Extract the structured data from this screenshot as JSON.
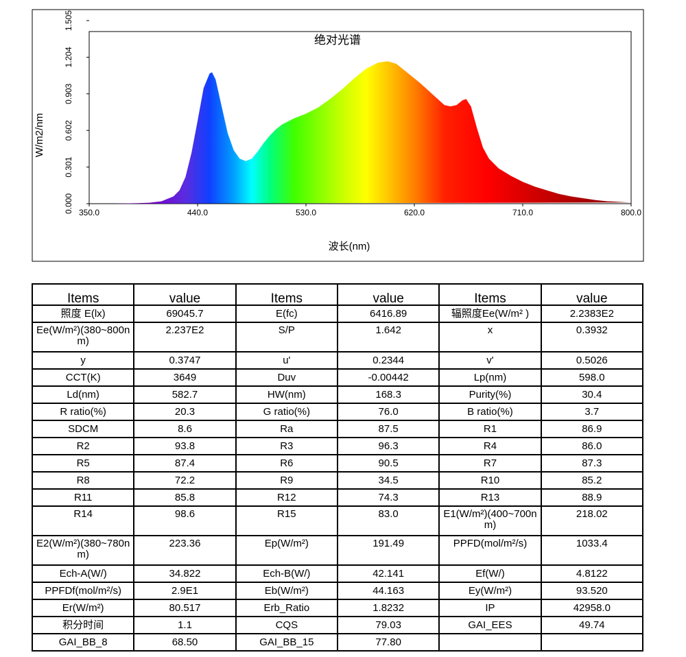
{
  "chart_data": {
    "type": "area",
    "title": "绝对光谱",
    "x_label": "波长(nm)",
    "y_label": "W/m2/nm",
    "xlim": [
      350,
      800
    ],
    "ylim": [
      0,
      1.505
    ],
    "xticks": [
      {
        "value": 350,
        "label": "350.0"
      },
      {
        "value": 440,
        "label": "440.0"
      },
      {
        "value": 530,
        "label": "530.0"
      },
      {
        "value": 620,
        "label": "620.0"
      },
      {
        "value": 710,
        "label": "710.0"
      },
      {
        "value": 800,
        "label": "800.0"
      }
    ],
    "yticks": [
      {
        "value": 0,
        "label": "0.000"
      },
      {
        "value": 0.301,
        "label": "0.301"
      },
      {
        "value": 0.602,
        "label": "0.602"
      },
      {
        "value": 0.903,
        "label": "0.903"
      },
      {
        "value": 1.204,
        "label": "1.204"
      },
      {
        "value": 1.505,
        "label": "1.505"
      }
    ],
    "x": [
      350,
      360,
      370,
      380,
      390,
      400,
      410,
      420,
      425,
      430,
      435,
      440,
      445,
      450,
      452,
      455,
      460,
      465,
      470,
      475,
      480,
      485,
      490,
      495,
      500,
      505,
      510,
      520,
      530,
      540,
      550,
      560,
      570,
      580,
      590,
      598,
      605,
      615,
      625,
      635,
      645,
      650,
      655,
      660,
      663,
      667,
      672,
      677,
      682,
      690,
      700,
      710,
      720,
      730,
      740,
      750,
      760,
      770,
      780,
      790,
      800
    ],
    "values": [
      0,
      0,
      0,
      0.002,
      0.004,
      0.008,
      0.02,
      0.06,
      0.11,
      0.22,
      0.42,
      0.68,
      0.95,
      1.07,
      1.08,
      1.02,
      0.8,
      0.58,
      0.44,
      0.37,
      0.35,
      0.37,
      0.43,
      0.5,
      0.56,
      0.61,
      0.65,
      0.7,
      0.74,
      0.79,
      0.86,
      0.94,
      1.03,
      1.11,
      1.16,
      1.17,
      1.15,
      1.07,
      0.99,
      0.9,
      0.81,
      0.8,
      0.81,
      0.85,
      0.86,
      0.8,
      0.62,
      0.46,
      0.37,
      0.29,
      0.23,
      0.18,
      0.14,
      0.11,
      0.08,
      0.06,
      0.045,
      0.03,
      0.02,
      0.015,
      0.01
    ]
  },
  "table": {
    "header": [
      "Items",
      "value",
      "Items",
      "value",
      "Items",
      "value"
    ],
    "rows": [
      [
        "照度 E(lx)",
        "69045.7",
        "E(fc)",
        "6416.89",
        "辐照度Ee(W/m² )",
        "2.2383E2"
      ],
      [
        "Ee(W/m²)(380~800nm)",
        "2.237E2",
        "S/P",
        "1.642",
        "x",
        "0.3932"
      ],
      [
        "y",
        "0.3747",
        "u'",
        "0.2344",
        "v'",
        "0.5026"
      ],
      [
        "CCT(K)",
        "3649",
        "Duv",
        "-0.00442",
        "Lp(nm)",
        "598.0"
      ],
      [
        "Ld(nm)",
        "582.7",
        "HW(nm)",
        "168.3",
        "Purity(%)",
        "30.4"
      ],
      [
        "R ratio(%)",
        "20.3",
        "G ratio(%)",
        "76.0",
        "B ratio(%)",
        "3.7"
      ],
      [
        "SDCM",
        "8.6",
        "Ra",
        "87.5",
        "R1",
        "86.9"
      ],
      [
        "R2",
        "93.8",
        "R3",
        "96.3",
        "R4",
        "86.0"
      ],
      [
        "R5",
        "87.4",
        "R6",
        "90.5",
        "R7",
        "87.3"
      ],
      [
        "R8",
        "72.2",
        "R9",
        "34.5",
        "R10",
        "85.2"
      ],
      [
        "R11",
        "85.8",
        "R12",
        "74.3",
        "R13",
        "88.9"
      ],
      [
        "R14",
        "98.6",
        "R15",
        "83.0",
        "E1(W/m²)(400~700nm)",
        "218.02"
      ],
      [
        "E2(W/m²)(380~780nm)",
        "223.36",
        "Ep(W/m²)",
        "191.49",
        "PPFD(mol/m²/s)",
        "1033.4"
      ],
      [
        "Ech-A(W/)",
        "34.822",
        "Ech-B(W/)",
        "42.141",
        "Ef(W/)",
        "4.8122"
      ],
      [
        "PPFDf(mol/m²/s)",
        "2.9E1",
        "Eb(W/m²)",
        "44.163",
        "Ey(W/m²)",
        "93.520"
      ],
      [
        "Er(W/m²)",
        "80.517",
        "Erb_Ratio",
        "1.8232",
        "IP",
        "42958.0"
      ],
      [
        "积分时间",
        "1.1",
        "CQS",
        "79.03",
        "GAI_EES",
        "49.74"
      ],
      [
        "GAI_BB_8",
        "68.50",
        "GAI_BB_15",
        "77.80"
      ]
    ]
  }
}
